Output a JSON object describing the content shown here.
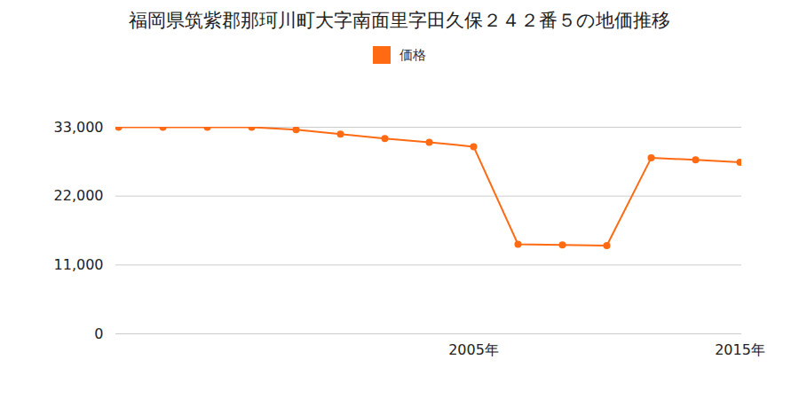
{
  "chart_data": {
    "type": "line",
    "title": "福岡県筑紫郡那珂川町大字南面里字田久保２４２番５の地価推移",
    "categories": [
      null,
      null,
      null,
      null,
      null,
      null,
      null,
      null,
      "2005年",
      null,
      null,
      null,
      null,
      null,
      "2015年"
    ],
    "series": [
      {
        "name": "価格",
        "color": "#ff6a13",
        "values": [
          33000,
          33000,
          33000,
          33000,
          32600,
          31900,
          31200,
          30600,
          29900,
          14300,
          14200,
          14100,
          28100,
          27800,
          27400
        ]
      }
    ],
    "ylim": [
      0,
      33000
    ],
    "yticks": [
      0,
      {
        "value": 11000,
        "label": "11,000"
      },
      {
        "value": 22000,
        "label": "22,000"
      },
      {
        "value": 33000,
        "label": "33,000"
      }
    ],
    "grid": true,
    "legend": "top",
    "marker": "circle"
  }
}
